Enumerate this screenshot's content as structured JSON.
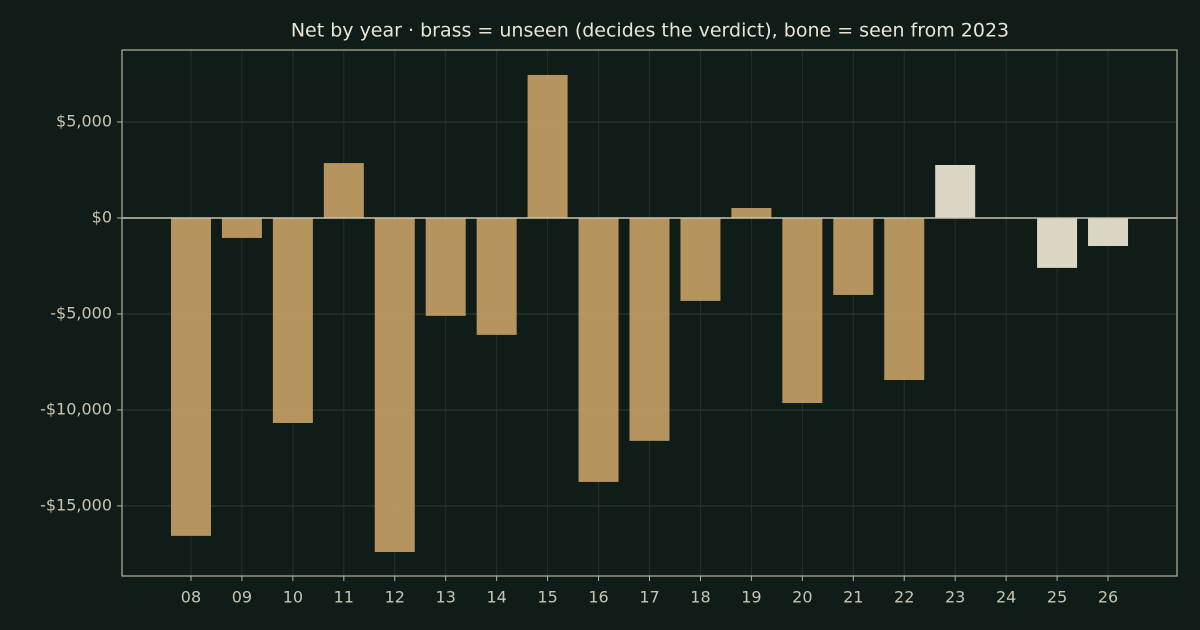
{
  "chart_data": {
    "type": "bar",
    "title": "Net by year  ·  brass = unseen (decides the verdict), bone = seen from 2023",
    "categories": [
      "08",
      "09",
      "10",
      "11",
      "12",
      "13",
      "14",
      "15",
      "16",
      "17",
      "18",
      "19",
      "20",
      "21",
      "22",
      "23",
      "24",
      "25",
      "26"
    ],
    "values": [
      -16560,
      -1040,
      -10680,
      2860,
      -17400,
      -5100,
      -6090,
      7450,
      -13750,
      -11610,
      -4320,
      520,
      -9640,
      -4010,
      -8440,
      2760,
      0,
      -2600,
      -1460
    ],
    "colors": [
      "#bf9b62",
      "#bf9b62",
      "#bf9b62",
      "#bf9b62",
      "#bf9b62",
      "#bf9b62",
      "#bf9b62",
      "#bf9b62",
      "#bf9b62",
      "#bf9b62",
      "#bf9b62",
      "#bf9b62",
      "#bf9b62",
      "#bf9b62",
      "#bf9b62",
      "#e8e0cf",
      "#e8e0cf",
      "#e8e0cf",
      "#e8e0cf"
    ],
    "ylim": [
      -18650,
      8750
    ],
    "yticks": [
      {
        "value": -15000,
        "label": "-$15,000"
      },
      {
        "value": -10000,
        "label": "-$10,000"
      },
      {
        "value": -5000,
        "label": "-$5,000"
      },
      {
        "value": 0,
        "label": "$0"
      },
      {
        "value": 5000,
        "label": "$5,000"
      }
    ],
    "grid": true
  }
}
